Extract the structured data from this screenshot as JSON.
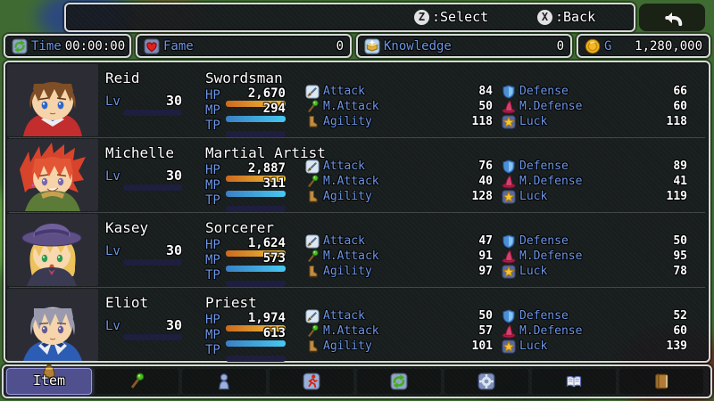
{
  "colors": {
    "system_text": "#6d96e6",
    "value_text": "#ffffff",
    "hp_gauge_start": "#cc6a1e",
    "hp_gauge_end": "#f0c23c",
    "mp_gauge_start": "#3a80c4",
    "mp_gauge_end": "#46c8f2",
    "gauge_background": "#1e1e3e",
    "selected_tab_background": "#50508e",
    "window_border": "#d8d8d8"
  },
  "top_bar": {
    "select_key": "Z",
    "select_label": ":Select",
    "back_key": "X",
    "back_label": ":Back",
    "return_icon": "undo-arrow-icon"
  },
  "status_bar": {
    "time": {
      "icon": "cycle-arrows-icon",
      "label": "Time",
      "value": "00:00:00"
    },
    "fame": {
      "icon": "heart-icon",
      "label": "Fame",
      "value": "0"
    },
    "knowledge": {
      "icon": "sparkle-book-icon",
      "label": "Knowledge",
      "value": "0"
    },
    "gold": {
      "icon": "gold-coin-icon",
      "label": "G",
      "value": "1,280,000"
    }
  },
  "party": [
    {
      "name": "Reid",
      "class": "Swordsman",
      "level_label": "Lv",
      "level": "30",
      "hp_label": "HP",
      "hp_value": "2,670",
      "mp_label": "MP",
      "mp_value": "294",
      "tp_label": "TP",
      "stats": {
        "attack": {
          "icon": "sword-icon",
          "label": "Attack",
          "value": "84"
        },
        "m_attack": {
          "icon": "staff-icon",
          "label": "M.Attack",
          "value": "50"
        },
        "agility": {
          "icon": "boot-icon",
          "label": "Agility",
          "value": "118"
        },
        "defense": {
          "icon": "shield-icon",
          "label": "Defense",
          "value": "66"
        },
        "m_defense": {
          "icon": "hat-icon",
          "label": "M.Defense",
          "value": "60"
        },
        "luck": {
          "icon": "star-icon",
          "label": "Luck",
          "value": "118"
        }
      }
    },
    {
      "name": "Michelle",
      "class": "Martial Artist",
      "level_label": "Lv",
      "level": "30",
      "hp_label": "HP",
      "hp_value": "2,887",
      "mp_label": "MP",
      "mp_value": "311",
      "tp_label": "TP",
      "stats": {
        "attack": {
          "icon": "sword-icon",
          "label": "Attack",
          "value": "76"
        },
        "m_attack": {
          "icon": "staff-icon",
          "label": "M.Attack",
          "value": "40"
        },
        "agility": {
          "icon": "boot-icon",
          "label": "Agility",
          "value": "128"
        },
        "defense": {
          "icon": "shield-icon",
          "label": "Defense",
          "value": "89"
        },
        "m_defense": {
          "icon": "hat-icon",
          "label": "M.Defense",
          "value": "41"
        },
        "luck": {
          "icon": "star-icon",
          "label": "Luck",
          "value": "119"
        }
      }
    },
    {
      "name": "Kasey",
      "class": "Sorcerer",
      "level_label": "Lv",
      "level": "30",
      "hp_label": "HP",
      "hp_value": "1,624",
      "mp_label": "MP",
      "mp_value": "573",
      "tp_label": "TP",
      "stats": {
        "attack": {
          "icon": "sword-icon",
          "label": "Attack",
          "value": "47"
        },
        "m_attack": {
          "icon": "staff-icon",
          "label": "M.Attack",
          "value": "91"
        },
        "agility": {
          "icon": "boot-icon",
          "label": "Agility",
          "value": "97"
        },
        "defense": {
          "icon": "shield-icon",
          "label": "Defense",
          "value": "50"
        },
        "m_defense": {
          "icon": "hat-icon",
          "label": "M.Defense",
          "value": "95"
        },
        "luck": {
          "icon": "star-icon",
          "label": "Luck",
          "value": "78"
        }
      }
    },
    {
      "name": "Eliot",
      "class": "Priest",
      "level_label": "Lv",
      "level": "30",
      "hp_label": "HP",
      "hp_value": "1,974",
      "mp_label": "MP",
      "mp_value": "613",
      "tp_label": "TP",
      "stats": {
        "attack": {
          "icon": "sword-icon",
          "label": "Attack",
          "value": "50"
        },
        "m_attack": {
          "icon": "staff-icon",
          "label": "M.Attack",
          "value": "57"
        },
        "agility": {
          "icon": "boot-icon",
          "label": "Agility",
          "value": "101"
        },
        "defense": {
          "icon": "shield-icon",
          "label": "Defense",
          "value": "52"
        },
        "m_defense": {
          "icon": "hat-icon",
          "label": "M.Defense",
          "value": "60"
        },
        "luck": {
          "icon": "star-icon",
          "label": "Luck",
          "value": "139"
        }
      }
    }
  ],
  "toolbar": {
    "items": [
      {
        "icon": "item-bag-icon",
        "label": "Item",
        "selected": true
      },
      {
        "icon": "skill-staff-icon",
        "selected": false
      },
      {
        "icon": "equip-doll-icon",
        "selected": false
      },
      {
        "icon": "status-runner-icon",
        "selected": false
      },
      {
        "icon": "formation-cycle-icon",
        "selected": false
      },
      {
        "icon": "options-gear-icon",
        "selected": false
      },
      {
        "icon": "library-book-icon",
        "selected": false
      },
      {
        "icon": "save-journal-icon",
        "selected": false
      }
    ]
  }
}
